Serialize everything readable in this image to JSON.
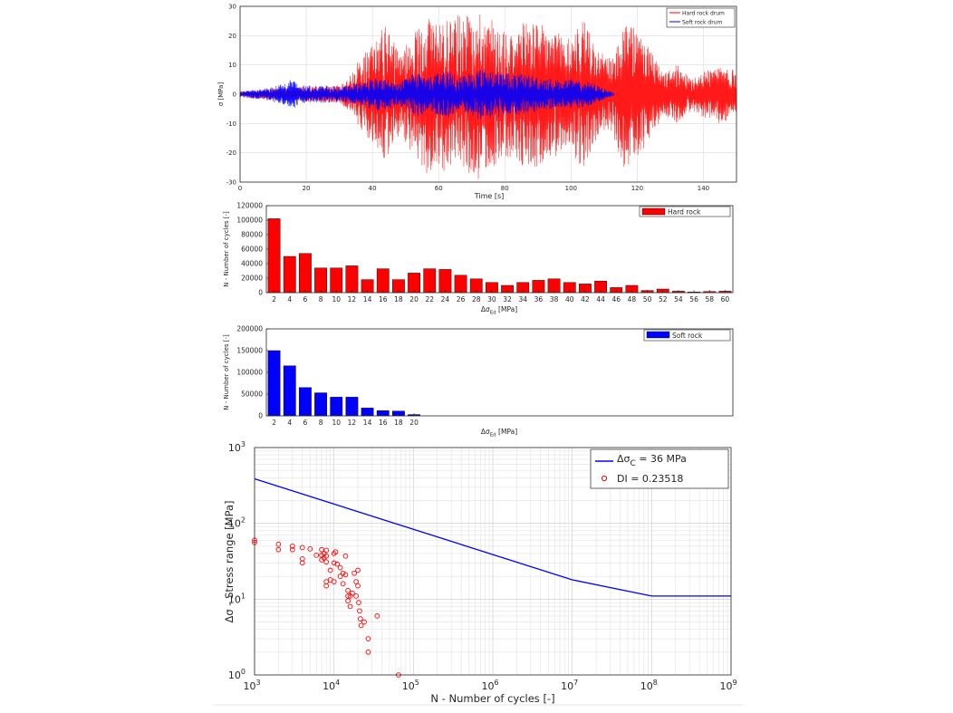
{
  "chart_data": [
    {
      "id": "signal",
      "type": "line",
      "xlabel": "Time [s]",
      "ylabel": "σ [MPa]",
      "xlim": [
        0,
        150
      ],
      "ylim": [
        -30,
        30
      ],
      "xticks": [
        "0",
        "20",
        "40",
        "60",
        "80",
        "100",
        "120",
        "140"
      ],
      "yticks": [
        "-30",
        "-20",
        "-10",
        "0",
        "10",
        "20",
        "30"
      ],
      "grid": true,
      "legend_position": "top-right",
      "series": [
        {
          "name": "Hard rock drum",
          "color": "#ff0000",
          "duration": 150,
          "envelope": [
            [
              0,
              1
            ],
            [
              10,
              2
            ],
            [
              20,
              2.5
            ],
            [
              30,
              3
            ],
            [
              33,
              6
            ],
            [
              36,
              12
            ],
            [
              40,
              17
            ],
            [
              44,
              24
            ],
            [
              48,
              14
            ],
            [
              52,
              20
            ],
            [
              56,
              27
            ],
            [
              60,
              26
            ],
            [
              64,
              27
            ],
            [
              68,
              27
            ],
            [
              72,
              29
            ],
            [
              76,
              26
            ],
            [
              80,
              22
            ],
            [
              84,
              24
            ],
            [
              88,
              26
            ],
            [
              92,
              23
            ],
            [
              96,
              21
            ],
            [
              100,
              20
            ],
            [
              104,
              26
            ],
            [
              108,
              15
            ],
            [
              112,
              12
            ],
            [
              116,
              25
            ],
            [
              120,
              22
            ],
            [
              124,
              15
            ],
            [
              128,
              7
            ],
            [
              132,
              10
            ],
            [
              136,
              6
            ],
            [
              140,
              8
            ],
            [
              145,
              10
            ],
            [
              150,
              8
            ]
          ]
        },
        {
          "name": "Soft rock drum",
          "color": "#0000ff",
          "duration": 113,
          "envelope": [
            [
              0,
              1
            ],
            [
              8,
              2
            ],
            [
              14,
              4
            ],
            [
              16,
              5.5
            ],
            [
              18,
              3
            ],
            [
              26,
              3
            ],
            [
              30,
              2.5
            ],
            [
              36,
              4
            ],
            [
              42,
              6
            ],
            [
              48,
              4
            ],
            [
              54,
              8
            ],
            [
              58,
              6
            ],
            [
              62,
              9
            ],
            [
              66,
              6
            ],
            [
              70,
              8
            ],
            [
              74,
              9
            ],
            [
              78,
              8
            ],
            [
              82,
              7
            ],
            [
              86,
              7
            ],
            [
              90,
              6
            ],
            [
              96,
              5
            ],
            [
              100,
              5
            ],
            [
              106,
              4
            ],
            [
              110,
              2
            ],
            [
              113,
              0.5
            ]
          ]
        }
      ]
    },
    {
      "id": "hard-hist",
      "type": "bar",
      "xlabel": "Δσ",
      "xlabel_sub": "Ed",
      "xlabel_unit": " [MPa]",
      "ylabel": "N - Number of cycles [-]",
      "ylim": [
        0,
        120000
      ],
      "yticks": [
        "0",
        "20000",
        "40000",
        "60000",
        "80000",
        "100000",
        "120000"
      ],
      "legend": "Hard rock",
      "legend_position": "top-right",
      "color": "#ff0000",
      "categories": [
        "2",
        "4",
        "6",
        "8",
        "10",
        "12",
        "14",
        "16",
        "18",
        "20",
        "22",
        "24",
        "26",
        "28",
        "30",
        "32",
        "34",
        "36",
        "38",
        "40",
        "42",
        "44",
        "46",
        "48",
        "50",
        "52",
        "54",
        "56",
        "58",
        "60"
      ],
      "values": [
        102000,
        50000,
        54000,
        34000,
        34000,
        37000,
        18000,
        33000,
        18000,
        27000,
        33000,
        32000,
        24000,
        19000,
        14000,
        10000,
        14000,
        17000,
        19000,
        14000,
        12000,
        16000,
        7000,
        10000,
        3000,
        5000,
        2000,
        1000,
        1500,
        2000
      ]
    },
    {
      "id": "soft-hist",
      "type": "bar",
      "xlabel": "Δσ",
      "xlabel_sub": "Ed",
      "xlabel_unit": " [MPa]",
      "ylabel": "N - Number of cycles [-]",
      "ylim": [
        0,
        200000
      ],
      "yticks": [
        "0",
        "50000",
        "100000",
        "150000",
        "200000"
      ],
      "legend": "Soft rock",
      "legend_position": "top-right",
      "color": "#0000ff",
      "slots": 30,
      "categories": [
        "2",
        "4",
        "6",
        "8",
        "10",
        "12",
        "14",
        "16",
        "18",
        "20"
      ],
      "values": [
        150000,
        115000,
        65000,
        53000,
        43000,
        43000,
        18000,
        12000,
        11000,
        3000
      ]
    },
    {
      "id": "sn",
      "type": "scatter",
      "xlabel": "N - Number of cycles [-]",
      "ylabel": "Δσ - Stress range [MPa]",
      "xscale": "log",
      "yscale": "log",
      "xlim": [
        1000,
        1000000000
      ],
      "ylim": [
        1,
        1000
      ],
      "xtick_exponents": [
        "3",
        "4",
        "5",
        "6",
        "7",
        "8",
        "9"
      ],
      "ytick_exponents": [
        "0",
        "1",
        "2",
        "3"
      ],
      "grid": true,
      "legend_position": "top-right",
      "line": {
        "name_main": "Δσ",
        "name_sub": "C",
        "name_rest": " = 36 MPa",
        "color": "#0000ff",
        "x": [
          1000,
          10000000,
          100000000,
          1000000000
        ],
        "y": [
          387,
          18,
          11,
          11
        ]
      },
      "scatter": {
        "name": "DI = 0.23518",
        "color": "#ff0000",
        "x": [
          1000,
          1000,
          2000,
          2000,
          3000,
          3000,
          4000,
          4000,
          4000,
          5000,
          6000,
          7000,
          7000,
          7000,
          7500,
          7500,
          8000,
          8000,
          8000,
          8000,
          8000,
          9000,
          9000,
          10000,
          10000,
          10000,
          10500,
          11000,
          12000,
          12000,
          13000,
          13000,
          14000,
          14000,
          15000,
          15000,
          15000,
          16000,
          16000,
          17000,
          18000,
          19000,
          19000,
          20000,
          20000,
          20500,
          21000,
          21500,
          22000,
          24000,
          27000,
          27000,
          35000,
          65000
        ],
        "y": [
          60,
          56,
          53,
          45,
          50,
          45,
          48,
          34,
          30,
          46,
          38,
          45,
          38,
          33,
          40,
          35,
          44,
          37,
          31,
          17,
          15,
          24,
          18,
          40,
          30,
          17,
          42,
          29,
          26,
          20,
          22,
          16,
          37,
          21,
          13,
          11,
          9.5,
          11,
          8,
          12,
          22,
          17,
          11,
          24,
          15,
          9,
          7,
          5.5,
          4.5,
          5,
          3,
          2,
          6,
          1
        ]
      }
    }
  ]
}
